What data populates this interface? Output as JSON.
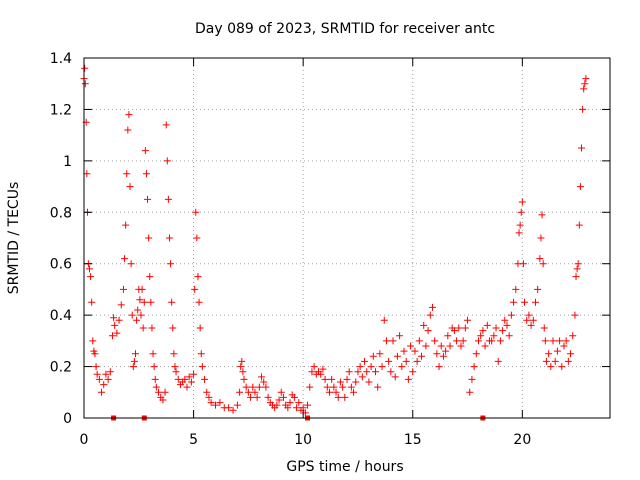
{
  "chart_data": {
    "type": "scatter",
    "title": "Day 089 of 2023, SRMTID for receiver antc",
    "xlabel": "GPS time / hours",
    "ylabel": "SRMTID / TECUs",
    "xlim": [
      0,
      24
    ],
    "ylim": [
      0,
      1.4
    ],
    "xticks": [
      0,
      5,
      10,
      15,
      20
    ],
    "yticks": [
      0,
      0.2,
      0.4,
      0.6,
      0.8,
      1,
      1.2,
      1.4
    ],
    "xtick_labels": [
      "0",
      "5",
      "10",
      "15",
      "20"
    ],
    "ytick_labels": [
      "0",
      "0.2",
      "0.4",
      "0.6",
      "0.8",
      "1",
      "1.2",
      "1.4"
    ],
    "grid": true,
    "marker": "+",
    "color": "#ff0000",
    "series": [
      {
        "name": "SRMTID",
        "points": [
          [
            0.0,
            1.32
          ],
          [
            0.03,
            1.36
          ],
          [
            0.06,
            1.3
          ],
          [
            0.1,
            1.15
          ],
          [
            0.13,
            0.95
          ],
          [
            0.16,
            0.8
          ],
          [
            0.2,
            0.6
          ],
          [
            0.25,
            0.58
          ],
          [
            0.3,
            0.55
          ],
          [
            0.35,
            0.45
          ],
          [
            0.4,
            0.3
          ],
          [
            0.45,
            0.26
          ],
          [
            0.5,
            0.25
          ],
          [
            0.55,
            0.2
          ],
          [
            0.6,
            0.17
          ],
          [
            0.7,
            0.15
          ],
          [
            0.8,
            0.1
          ],
          [
            0.9,
            0.13
          ],
          [
            1.0,
            0.17
          ],
          [
            1.1,
            0.15
          ],
          [
            1.2,
            0.18
          ],
          [
            1.3,
            0.32
          ],
          [
            1.35,
            0.39
          ],
          [
            1.4,
            0.36
          ],
          [
            1.5,
            0.33
          ],
          [
            1.6,
            0.38
          ],
          [
            1.7,
            0.44
          ],
          [
            1.8,
            0.5
          ],
          [
            1.85,
            0.62
          ],
          [
            1.9,
            0.75
          ],
          [
            1.95,
            0.95
          ],
          [
            2.0,
            1.12
          ],
          [
            2.05,
            1.18
          ],
          [
            2.1,
            0.9
          ],
          [
            2.15,
            0.6
          ],
          [
            2.2,
            0.4
          ],
          [
            2.25,
            0.2
          ],
          [
            2.3,
            0.22
          ],
          [
            2.35,
            0.25
          ],
          [
            2.4,
            0.38
          ],
          [
            2.45,
            0.42
          ],
          [
            2.5,
            0.5
          ],
          [
            2.55,
            0.46
          ],
          [
            2.6,
            0.4
          ],
          [
            2.65,
            0.5
          ],
          [
            2.7,
            0.35
          ],
          [
            2.75,
            0.45
          ],
          [
            2.8,
            1.04
          ],
          [
            2.85,
            0.95
          ],
          [
            2.9,
            0.85
          ],
          [
            2.95,
            0.7
          ],
          [
            3.0,
            0.55
          ],
          [
            3.05,
            0.45
          ],
          [
            3.1,
            0.35
          ],
          [
            3.15,
            0.25
          ],
          [
            3.2,
            0.2
          ],
          [
            3.25,
            0.15
          ],
          [
            3.3,
            0.12
          ],
          [
            3.4,
            0.1
          ],
          [
            3.5,
            0.08
          ],
          [
            3.6,
            0.07
          ],
          [
            3.7,
            0.1
          ],
          [
            3.75,
            1.14
          ],
          [
            3.8,
            1.0
          ],
          [
            3.85,
            0.85
          ],
          [
            3.9,
            0.7
          ],
          [
            3.95,
            0.6
          ],
          [
            4.0,
            0.45
          ],
          [
            4.05,
            0.35
          ],
          [
            4.1,
            0.25
          ],
          [
            4.15,
            0.2
          ],
          [
            4.2,
            0.18
          ],
          [
            4.3,
            0.15
          ],
          [
            4.4,
            0.13
          ],
          [
            4.5,
            0.14
          ],
          [
            4.6,
            0.15
          ],
          [
            4.7,
            0.12
          ],
          [
            4.8,
            0.16
          ],
          [
            4.9,
            0.14
          ],
          [
            5.0,
            0.17
          ],
          [
            5.05,
            0.5
          ],
          [
            5.1,
            0.8
          ],
          [
            5.15,
            0.7
          ],
          [
            5.2,
            0.55
          ],
          [
            5.25,
            0.45
          ],
          [
            5.3,
            0.35
          ],
          [
            5.35,
            0.25
          ],
          [
            5.4,
            0.2
          ],
          [
            5.5,
            0.15
          ],
          [
            5.6,
            0.1
          ],
          [
            5.7,
            0.08
          ],
          [
            5.8,
            0.06
          ],
          [
            6.0,
            0.05
          ],
          [
            6.2,
            0.06
          ],
          [
            6.4,
            0.04
          ],
          [
            6.6,
            0.04
          ],
          [
            6.8,
            0.03
          ],
          [
            7.0,
            0.05
          ],
          [
            7.1,
            0.1
          ],
          [
            7.15,
            0.2
          ],
          [
            7.2,
            0.22
          ],
          [
            7.25,
            0.18
          ],
          [
            7.3,
            0.15
          ],
          [
            7.4,
            0.12
          ],
          [
            7.5,
            0.1
          ],
          [
            7.6,
            0.08
          ],
          [
            7.7,
            0.12
          ],
          [
            7.8,
            0.1
          ],
          [
            7.9,
            0.08
          ],
          [
            8.0,
            0.12
          ],
          [
            8.1,
            0.16
          ],
          [
            8.2,
            0.14
          ],
          [
            8.3,
            0.12
          ],
          [
            8.4,
            0.08
          ],
          [
            8.5,
            0.06
          ],
          [
            8.6,
            0.05
          ],
          [
            8.7,
            0.04
          ],
          [
            8.8,
            0.05
          ],
          [
            8.9,
            0.07
          ],
          [
            9.0,
            0.1
          ],
          [
            9.1,
            0.08
          ],
          [
            9.2,
            0.05
          ],
          [
            9.3,
            0.04
          ],
          [
            9.4,
            0.06
          ],
          [
            9.5,
            0.09
          ],
          [
            9.6,
            0.08
          ],
          [
            9.7,
            0.04
          ],
          [
            9.8,
            0.06
          ],
          [
            9.9,
            0.03
          ],
          [
            10.0,
            0.04
          ],
          [
            10.1,
            0.02
          ],
          [
            10.2,
            0.05
          ],
          [
            10.3,
            0.12
          ],
          [
            10.4,
            0.18
          ],
          [
            10.5,
            0.2
          ],
          [
            10.6,
            0.17
          ],
          [
            10.7,
            0.18
          ],
          [
            10.8,
            0.17
          ],
          [
            10.9,
            0.19
          ],
          [
            11.0,
            0.15
          ],
          [
            11.1,
            0.12
          ],
          [
            11.2,
            0.1
          ],
          [
            11.3,
            0.15
          ],
          [
            11.4,
            0.12
          ],
          [
            11.5,
            0.1
          ],
          [
            11.6,
            0.08
          ],
          [
            11.7,
            0.14
          ],
          [
            11.8,
            0.12
          ],
          [
            11.9,
            0.08
          ],
          [
            12.0,
            0.15
          ],
          [
            12.1,
            0.18
          ],
          [
            12.2,
            0.12
          ],
          [
            12.3,
            0.1
          ],
          [
            12.4,
            0.14
          ],
          [
            12.5,
            0.18
          ],
          [
            12.6,
            0.2
          ],
          [
            12.7,
            0.16
          ],
          [
            12.8,
            0.22
          ],
          [
            12.9,
            0.18
          ],
          [
            13.0,
            0.14
          ],
          [
            13.1,
            0.2
          ],
          [
            13.2,
            0.24
          ],
          [
            13.3,
            0.18
          ],
          [
            13.4,
            0.12
          ],
          [
            13.5,
            0.25
          ],
          [
            13.6,
            0.2
          ],
          [
            13.7,
            0.38
          ],
          [
            13.8,
            0.3
          ],
          [
            13.9,
            0.22
          ],
          [
            14.0,
            0.18
          ],
          [
            14.1,
            0.3
          ],
          [
            14.2,
            0.16
          ],
          [
            14.3,
            0.24
          ],
          [
            14.4,
            0.32
          ],
          [
            14.5,
            0.2
          ],
          [
            14.6,
            0.26
          ],
          [
            14.7,
            0.22
          ],
          [
            14.8,
            0.15
          ],
          [
            14.9,
            0.28
          ],
          [
            15.0,
            0.18
          ],
          [
            15.1,
            0.26
          ],
          [
            15.2,
            0.22
          ],
          [
            15.3,
            0.3
          ],
          [
            15.4,
            0.24
          ],
          [
            15.5,
            0.36
          ],
          [
            15.6,
            0.28
          ],
          [
            15.7,
            0.34
          ],
          [
            15.8,
            0.4
          ],
          [
            15.9,
            0.43
          ],
          [
            16.0,
            0.3
          ],
          [
            16.1,
            0.25
          ],
          [
            16.2,
            0.2
          ],
          [
            16.3,
            0.28
          ],
          [
            16.4,
            0.24
          ],
          [
            16.5,
            0.26
          ],
          [
            16.6,
            0.32
          ],
          [
            16.7,
            0.28
          ],
          [
            16.8,
            0.35
          ],
          [
            16.9,
            0.34
          ],
          [
            17.0,
            0.3
          ],
          [
            17.1,
            0.35
          ],
          [
            17.2,
            0.28
          ],
          [
            17.3,
            0.3
          ],
          [
            17.4,
            0.35
          ],
          [
            17.5,
            0.38
          ],
          [
            17.6,
            0.1
          ],
          [
            17.7,
            0.15
          ],
          [
            17.8,
            0.2
          ],
          [
            17.9,
            0.25
          ],
          [
            18.0,
            0.3
          ],
          [
            18.1,
            0.32
          ],
          [
            18.2,
            0.34
          ],
          [
            18.3,
            0.28
          ],
          [
            18.4,
            0.36
          ],
          [
            18.5,
            0.3
          ],
          [
            18.6,
            0.3
          ],
          [
            18.7,
            0.32
          ],
          [
            18.8,
            0.35
          ],
          [
            18.9,
            0.22
          ],
          [
            19.0,
            0.3
          ],
          [
            19.1,
            0.34
          ],
          [
            19.2,
            0.38
          ],
          [
            19.3,
            0.36
          ],
          [
            19.4,
            0.32
          ],
          [
            19.5,
            0.4
          ],
          [
            19.6,
            0.45
          ],
          [
            19.7,
            0.5
          ],
          [
            19.8,
            0.6
          ],
          [
            19.85,
            0.72
          ],
          [
            19.9,
            0.75
          ],
          [
            19.95,
            0.8
          ],
          [
            20.0,
            0.84
          ],
          [
            20.05,
            0.6
          ],
          [
            20.1,
            0.45
          ],
          [
            20.2,
            0.38
          ],
          [
            20.3,
            0.4
          ],
          [
            20.4,
            0.36
          ],
          [
            20.5,
            0.38
          ],
          [
            20.6,
            0.45
          ],
          [
            20.7,
            0.5
          ],
          [
            20.8,
            0.62
          ],
          [
            20.85,
            0.7
          ],
          [
            20.9,
            0.79
          ],
          [
            20.95,
            0.6
          ],
          [
            21.0,
            0.35
          ],
          [
            21.05,
            0.3
          ],
          [
            21.1,
            0.22
          ],
          [
            21.2,
            0.25
          ],
          [
            21.3,
            0.2
          ],
          [
            21.4,
            0.3
          ],
          [
            21.5,
            0.22
          ],
          [
            21.6,
            0.26
          ],
          [
            21.7,
            0.3
          ],
          [
            21.8,
            0.2
          ],
          [
            21.9,
            0.28
          ],
          [
            22.0,
            0.3
          ],
          [
            22.1,
            0.22
          ],
          [
            22.2,
            0.25
          ],
          [
            22.3,
            0.32
          ],
          [
            22.4,
            0.4
          ],
          [
            22.45,
            0.55
          ],
          [
            22.5,
            0.58
          ],
          [
            22.55,
            0.6
          ],
          [
            22.6,
            0.75
          ],
          [
            22.65,
            0.9
          ],
          [
            22.7,
            1.05
          ],
          [
            22.75,
            1.2
          ],
          [
            22.8,
            1.28
          ],
          [
            22.85,
            1.3
          ],
          [
            22.9,
            1.32
          ]
        ]
      }
    ],
    "gap_markers_x": [
      1.35,
      2.75,
      10.2,
      18.2
    ]
  }
}
